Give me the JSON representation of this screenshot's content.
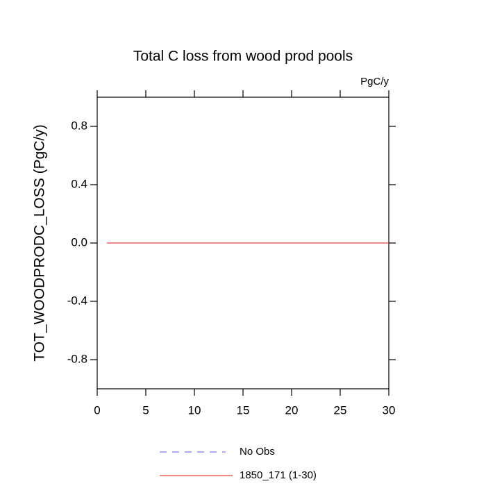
{
  "chart_data": {
    "type": "line",
    "title": "Total C loss from wood prod pools",
    "units": "PgC/y",
    "y_label": "TOT_WOODPRODC_LOSS  (PgC/y)",
    "x": [
      1,
      2,
      3,
      4,
      5,
      6,
      7,
      8,
      9,
      10,
      11,
      12,
      13,
      14,
      15,
      16,
      17,
      18,
      19,
      20,
      21,
      22,
      23,
      24,
      25,
      26,
      27,
      28,
      29,
      30
    ],
    "series": [
      {
        "name": "No Obs",
        "color": "#7777ff",
        "dashed": true,
        "values": [
          null,
          null,
          null,
          null,
          null,
          null,
          null,
          null,
          null,
          null,
          null,
          null,
          null,
          null,
          null,
          null,
          null,
          null,
          null,
          null,
          null,
          null,
          null,
          null,
          null,
          null,
          null,
          null,
          null,
          null
        ]
      },
      {
        "name": "1850_171 (1-30)",
        "color": "#e8413c",
        "dashed": false,
        "values": [
          0,
          0,
          0,
          0,
          0,
          0,
          0,
          0,
          0,
          0,
          0,
          0,
          0,
          0,
          0,
          0,
          0,
          0,
          0,
          0,
          0,
          0,
          0,
          0,
          0,
          0,
          0,
          0,
          0,
          0
        ]
      }
    ],
    "xlim": [
      0,
      30
    ],
    "xticks": [
      0,
      5,
      10,
      15,
      20,
      25,
      30
    ],
    "ylim": [
      -1,
      1
    ],
    "yticks": [
      -0.8,
      -0.4,
      {
        "value": 0,
        "label": "0.0"
      },
      0.4,
      0.8
    ]
  }
}
